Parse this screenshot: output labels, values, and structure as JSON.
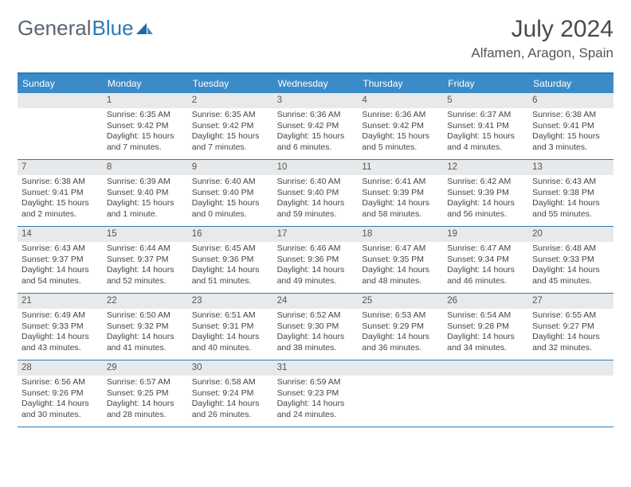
{
  "logo": {
    "part1": "General",
    "part2": "Blue"
  },
  "title": "July 2024",
  "subtitle": "Alfamen, Aragon, Spain",
  "colors": {
    "header_bg": "#3b8bc9",
    "header_text": "#ffffff",
    "border": "#2a7ab8",
    "daynum_bg": "#e8e9ea",
    "body_text": "#444444",
    "logo_gray": "#5a6570",
    "logo_blue": "#2a7ab8"
  },
  "weekdays": [
    "Sunday",
    "Monday",
    "Tuesday",
    "Wednesday",
    "Thursday",
    "Friday",
    "Saturday"
  ],
  "weeks": [
    [
      {
        "day": "",
        "lines": []
      },
      {
        "day": "1",
        "lines": [
          "Sunrise: 6:35 AM",
          "Sunset: 9:42 PM",
          "Daylight: 15 hours and 7 minutes."
        ]
      },
      {
        "day": "2",
        "lines": [
          "Sunrise: 6:35 AM",
          "Sunset: 9:42 PM",
          "Daylight: 15 hours and 7 minutes."
        ]
      },
      {
        "day": "3",
        "lines": [
          "Sunrise: 6:36 AM",
          "Sunset: 9:42 PM",
          "Daylight: 15 hours and 6 minutes."
        ]
      },
      {
        "day": "4",
        "lines": [
          "Sunrise: 6:36 AM",
          "Sunset: 9:42 PM",
          "Daylight: 15 hours and 5 minutes."
        ]
      },
      {
        "day": "5",
        "lines": [
          "Sunrise: 6:37 AM",
          "Sunset: 9:41 PM",
          "Daylight: 15 hours and 4 minutes."
        ]
      },
      {
        "day": "6",
        "lines": [
          "Sunrise: 6:38 AM",
          "Sunset: 9:41 PM",
          "Daylight: 15 hours and 3 minutes."
        ]
      }
    ],
    [
      {
        "day": "7",
        "lines": [
          "Sunrise: 6:38 AM",
          "Sunset: 9:41 PM",
          "Daylight: 15 hours and 2 minutes."
        ]
      },
      {
        "day": "8",
        "lines": [
          "Sunrise: 6:39 AM",
          "Sunset: 9:40 PM",
          "Daylight: 15 hours and 1 minute."
        ]
      },
      {
        "day": "9",
        "lines": [
          "Sunrise: 6:40 AM",
          "Sunset: 9:40 PM",
          "Daylight: 15 hours and 0 minutes."
        ]
      },
      {
        "day": "10",
        "lines": [
          "Sunrise: 6:40 AM",
          "Sunset: 9:40 PM",
          "Daylight: 14 hours and 59 minutes."
        ]
      },
      {
        "day": "11",
        "lines": [
          "Sunrise: 6:41 AM",
          "Sunset: 9:39 PM",
          "Daylight: 14 hours and 58 minutes."
        ]
      },
      {
        "day": "12",
        "lines": [
          "Sunrise: 6:42 AM",
          "Sunset: 9:39 PM",
          "Daylight: 14 hours and 56 minutes."
        ]
      },
      {
        "day": "13",
        "lines": [
          "Sunrise: 6:43 AM",
          "Sunset: 9:38 PM",
          "Daylight: 14 hours and 55 minutes."
        ]
      }
    ],
    [
      {
        "day": "14",
        "lines": [
          "Sunrise: 6:43 AM",
          "Sunset: 9:37 PM",
          "Daylight: 14 hours and 54 minutes."
        ]
      },
      {
        "day": "15",
        "lines": [
          "Sunrise: 6:44 AM",
          "Sunset: 9:37 PM",
          "Daylight: 14 hours and 52 minutes."
        ]
      },
      {
        "day": "16",
        "lines": [
          "Sunrise: 6:45 AM",
          "Sunset: 9:36 PM",
          "Daylight: 14 hours and 51 minutes."
        ]
      },
      {
        "day": "17",
        "lines": [
          "Sunrise: 6:46 AM",
          "Sunset: 9:36 PM",
          "Daylight: 14 hours and 49 minutes."
        ]
      },
      {
        "day": "18",
        "lines": [
          "Sunrise: 6:47 AM",
          "Sunset: 9:35 PM",
          "Daylight: 14 hours and 48 minutes."
        ]
      },
      {
        "day": "19",
        "lines": [
          "Sunrise: 6:47 AM",
          "Sunset: 9:34 PM",
          "Daylight: 14 hours and 46 minutes."
        ]
      },
      {
        "day": "20",
        "lines": [
          "Sunrise: 6:48 AM",
          "Sunset: 9:33 PM",
          "Daylight: 14 hours and 45 minutes."
        ]
      }
    ],
    [
      {
        "day": "21",
        "lines": [
          "Sunrise: 6:49 AM",
          "Sunset: 9:33 PM",
          "Daylight: 14 hours and 43 minutes."
        ]
      },
      {
        "day": "22",
        "lines": [
          "Sunrise: 6:50 AM",
          "Sunset: 9:32 PM",
          "Daylight: 14 hours and 41 minutes."
        ]
      },
      {
        "day": "23",
        "lines": [
          "Sunrise: 6:51 AM",
          "Sunset: 9:31 PM",
          "Daylight: 14 hours and 40 minutes."
        ]
      },
      {
        "day": "24",
        "lines": [
          "Sunrise: 6:52 AM",
          "Sunset: 9:30 PM",
          "Daylight: 14 hours and 38 minutes."
        ]
      },
      {
        "day": "25",
        "lines": [
          "Sunrise: 6:53 AM",
          "Sunset: 9:29 PM",
          "Daylight: 14 hours and 36 minutes."
        ]
      },
      {
        "day": "26",
        "lines": [
          "Sunrise: 6:54 AM",
          "Sunset: 9:28 PM",
          "Daylight: 14 hours and 34 minutes."
        ]
      },
      {
        "day": "27",
        "lines": [
          "Sunrise: 6:55 AM",
          "Sunset: 9:27 PM",
          "Daylight: 14 hours and 32 minutes."
        ]
      }
    ],
    [
      {
        "day": "28",
        "lines": [
          "Sunrise: 6:56 AM",
          "Sunset: 9:26 PM",
          "Daylight: 14 hours and 30 minutes."
        ]
      },
      {
        "day": "29",
        "lines": [
          "Sunrise: 6:57 AM",
          "Sunset: 9:25 PM",
          "Daylight: 14 hours and 28 minutes."
        ]
      },
      {
        "day": "30",
        "lines": [
          "Sunrise: 6:58 AM",
          "Sunset: 9:24 PM",
          "Daylight: 14 hours and 26 minutes."
        ]
      },
      {
        "day": "31",
        "lines": [
          "Sunrise: 6:59 AM",
          "Sunset: 9:23 PM",
          "Daylight: 14 hours and 24 minutes."
        ]
      },
      {
        "day": "",
        "lines": []
      },
      {
        "day": "",
        "lines": []
      },
      {
        "day": "",
        "lines": []
      }
    ]
  ]
}
